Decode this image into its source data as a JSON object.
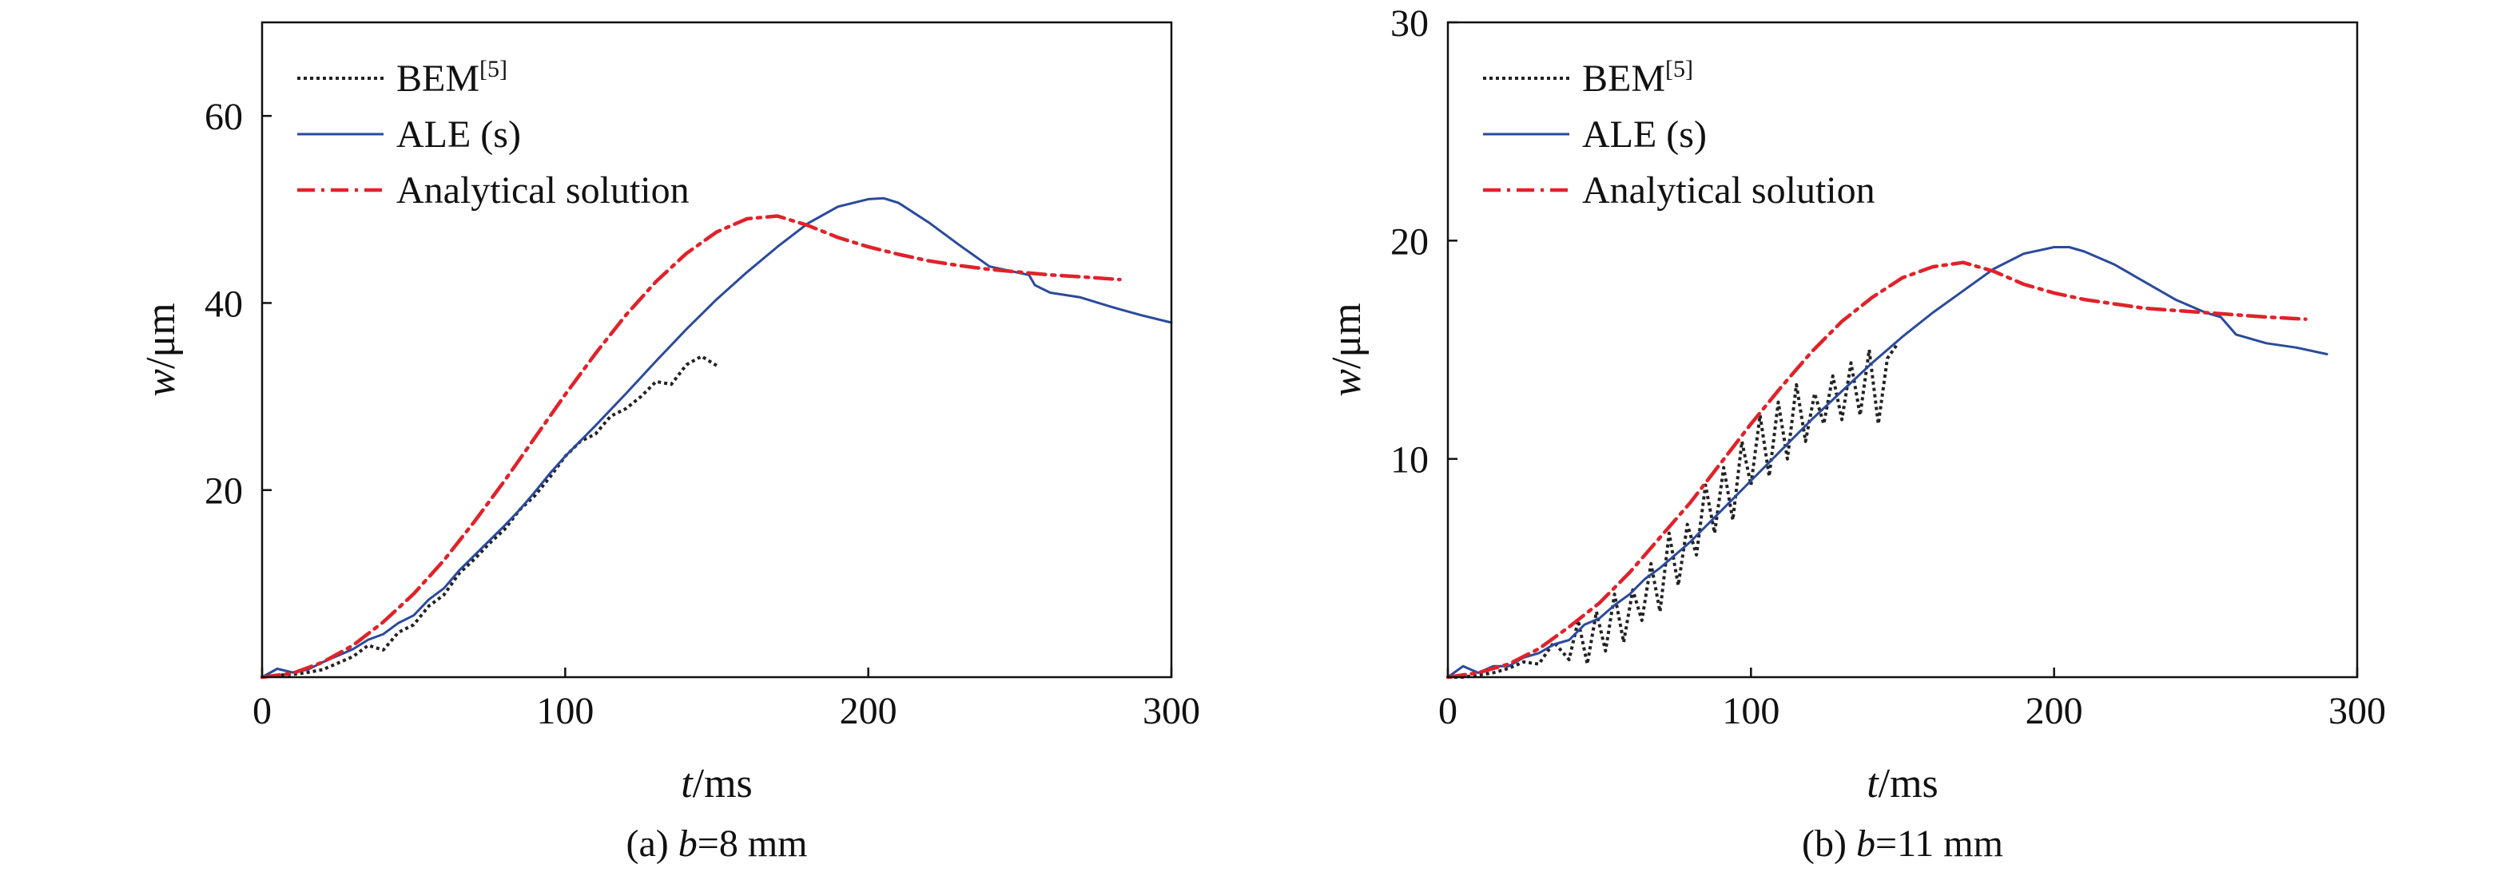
{
  "chart_data": [
    {
      "type": "line",
      "caption_prefix": "(a) ",
      "caption_var": "b",
      "caption_suffix": "=8 mm",
      "xlabel_var": "t",
      "xlabel_unit": "/ms",
      "ylabel_var": "w",
      "ylabel_unit": "/μm",
      "xlim": [
        0,
        300
      ],
      "ylim": [
        0,
        70
      ],
      "xticks": [
        "0",
        "100",
        "200",
        "300"
      ],
      "xtick_values": [
        0,
        100,
        200,
        300
      ],
      "yticks": [
        "20",
        "40",
        "60"
      ],
      "ytick_values": [
        20,
        40,
        60
      ],
      "grid": false,
      "legend_position": "top-left",
      "series": [
        {
          "name": "BEM",
          "name_sup": "[5]",
          "style": "dotted",
          "color": "#222222",
          "x": [
            0,
            5,
            10,
            15,
            20,
            25,
            30,
            35,
            40,
            45,
            50,
            55,
            60,
            65,
            70,
            75,
            80,
            85,
            90,
            95,
            100,
            105,
            110,
            115,
            120,
            125,
            130,
            135,
            140,
            145,
            150
          ],
          "y": [
            0,
            0.2,
            0.3,
            0.5,
            0.8,
            1.5,
            2.2,
            3.4,
            2.9,
            4.8,
            5.6,
            7.6,
            8.8,
            11.1,
            12.6,
            14.3,
            15.8,
            17.9,
            19.4,
            21.4,
            23.6,
            25.2,
            26.0,
            27.9,
            28.7,
            30.0,
            31.6,
            31.3,
            33.4,
            34.3,
            33.3
          ]
        },
        {
          "name": "ALE (s)",
          "style": "solid",
          "color": "#2a4a9c",
          "x": [
            0,
            5,
            10,
            15,
            20,
            25,
            30,
            35,
            40,
            45,
            50,
            55,
            60,
            65,
            70,
            75,
            80,
            85,
            90,
            95,
            100,
            110,
            120,
            130,
            140,
            150,
            160,
            170,
            180,
            190,
            200,
            205,
            210,
            220,
            230,
            240,
            250,
            253,
            255,
            260,
            270,
            280,
            290,
            300
          ],
          "y": [
            0,
            0.9,
            0.5,
            0.8,
            1.6,
            2.3,
            3.0,
            4.0,
            4.6,
            5.8,
            6.6,
            8.3,
            9.5,
            11.4,
            13.0,
            14.6,
            16.2,
            17.9,
            19.8,
            21.8,
            23.6,
            26.9,
            30.3,
            33.8,
            37.2,
            40.4,
            43.3,
            46.0,
            48.5,
            50.3,
            51.1,
            51.2,
            50.7,
            48.6,
            46.2,
            43.9,
            43.2,
            43.0,
            41.9,
            41.1,
            40.6,
            39.6,
            38.7,
            37.9
          ]
        },
        {
          "name": "Analytical solution",
          "style": "dashdot",
          "color": "#e0222a",
          "x": [
            0,
            10,
            20,
            30,
            40,
            50,
            60,
            70,
            80,
            90,
            100,
            110,
            120,
            130,
            140,
            150,
            160,
            170,
            180,
            190,
            200,
            210,
            220,
            230,
            240,
            250,
            260,
            270,
            283
          ],
          "y": [
            0,
            0.4,
            1.6,
            3.4,
            5.9,
            8.9,
            12.5,
            16.6,
            21.0,
            25.6,
            30.2,
            34.6,
            38.7,
            42.3,
            45.3,
            47.6,
            49.0,
            49.3,
            48.3,
            47.0,
            46.0,
            45.2,
            44.5,
            44.0,
            43.6,
            43.3,
            43.0,
            42.8,
            42.5
          ]
        }
      ]
    },
    {
      "type": "line",
      "caption_prefix": "(b) ",
      "caption_var": "b",
      "caption_suffix": "=11 mm",
      "xlabel_var": "t",
      "xlabel_unit": "/ms",
      "ylabel_var": "w",
      "ylabel_unit": "/μm",
      "xlim": [
        0,
        300
      ],
      "ylim": [
        0,
        30
      ],
      "xticks": [
        "0",
        "100",
        "200",
        "300"
      ],
      "xtick_values": [
        0,
        100,
        200,
        300
      ],
      "yticks": [
        "10",
        "20",
        "30"
      ],
      "ytick_values": [
        10,
        20,
        30
      ],
      "grid": false,
      "legend_position": "top-left",
      "series": [
        {
          "name": "BEM",
          "name_sup": "[5]",
          "style": "dotted",
          "color": "#222222",
          "x": [
            0,
            5,
            10,
            15,
            20,
            25,
            30,
            35,
            40,
            43,
            46,
            49,
            52,
            55,
            58,
            61,
            64,
            67,
            70,
            73,
            76,
            79,
            82,
            85,
            88,
            91,
            94,
            97,
            100,
            103,
            106,
            109,
            112,
            115,
            118,
            121,
            124,
            127,
            130,
            133,
            136,
            139,
            142,
            145,
            148
          ],
          "y": [
            0,
            0,
            0.1,
            0.2,
            0.4,
            0.7,
            0.6,
            1.6,
            0.8,
            2.6,
            0.6,
            3.0,
            1.2,
            3.8,
            1.6,
            4.0,
            2.6,
            5.2,
            3.0,
            6.6,
            4.2,
            7.0,
            5.6,
            8.8,
            6.6,
            9.6,
            7.2,
            10.8,
            8.8,
            12.0,
            9.2,
            12.6,
            10.0,
            13.4,
            10.8,
            13.0,
            11.6,
            13.8,
            11.8,
            14.4,
            12.0,
            15.0,
            11.6,
            14.6,
            15.2
          ]
        },
        {
          "name": "ALE (s)",
          "style": "solid",
          "color": "#2a4a9c",
          "x": [
            0,
            5,
            10,
            15,
            20,
            25,
            30,
            35,
            40,
            45,
            50,
            55,
            60,
            65,
            70,
            75,
            80,
            85,
            90,
            95,
            100,
            110,
            120,
            130,
            140,
            150,
            160,
            170,
            180,
            190,
            200,
            205,
            210,
            220,
            230,
            240,
            250,
            255,
            260,
            270,
            280,
            290
          ],
          "y": [
            0,
            0.5,
            0.2,
            0.5,
            0.5,
            0.9,
            1.1,
            1.5,
            1.7,
            2.4,
            2.7,
            3.3,
            3.8,
            4.5,
            5.0,
            5.6,
            6.2,
            6.9,
            7.6,
            8.3,
            9.0,
            10.4,
            11.8,
            13.1,
            14.4,
            15.6,
            16.7,
            17.7,
            18.7,
            19.4,
            19.7,
            19.7,
            19.5,
            18.9,
            18.1,
            17.3,
            16.7,
            16.5,
            15.7,
            15.3,
            15.1,
            14.8
          ]
        },
        {
          "name": "Analytical solution",
          "style": "dashdot",
          "color": "#e0222a",
          "x": [
            0,
            10,
            20,
            30,
            40,
            50,
            60,
            70,
            80,
            90,
            100,
            110,
            120,
            130,
            140,
            150,
            160,
            170,
            180,
            190,
            200,
            210,
            220,
            230,
            240,
            250,
            260,
            270,
            283
          ],
          "y": [
            0,
            0.2,
            0.6,
            1.3,
            2.3,
            3.4,
            4.8,
            6.4,
            8.0,
            9.8,
            11.6,
            13.3,
            14.9,
            16.3,
            17.4,
            18.3,
            18.8,
            19.0,
            18.6,
            18.0,
            17.6,
            17.3,
            17.1,
            16.9,
            16.8,
            16.7,
            16.6,
            16.5,
            16.4
          ]
        }
      ]
    }
  ]
}
